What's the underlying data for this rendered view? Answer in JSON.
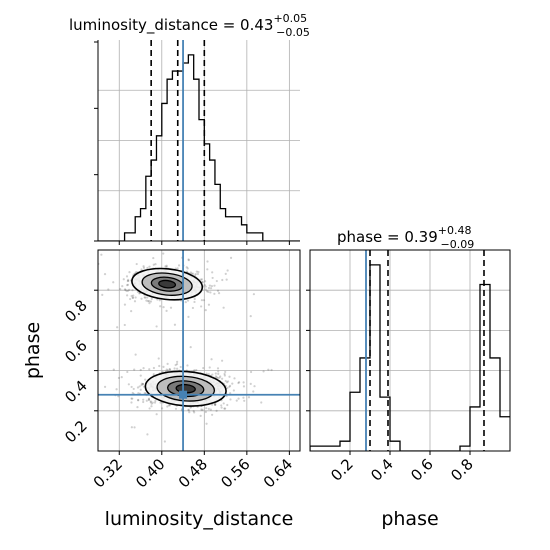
{
  "chart_data": [
    {
      "type": "histogram",
      "panel": "top-left",
      "parameter": "luminosity_distance",
      "title": {
        "main": "luminosity_distance = 0.43",
        "sup": "+0.05",
        "sub": "−0.05"
      },
      "xlim": [
        0.28,
        0.66
      ],
      "grid": true,
      "bin_edges": [
        0.28,
        0.29,
        0.3,
        0.31,
        0.32,
        0.33,
        0.34,
        0.35,
        0.36,
        0.37,
        0.38,
        0.39,
        0.4,
        0.41,
        0.42,
        0.43,
        0.44,
        0.45,
        0.46,
        0.47,
        0.48,
        0.49,
        0.5,
        0.51,
        0.52,
        0.53,
        0.54,
        0.55,
        0.56,
        0.57,
        0.58,
        0.59,
        0.6,
        0.61,
        0.62,
        0.63,
        0.64,
        0.65,
        0.66
      ],
      "counts": [
        0,
        0,
        0,
        0,
        0,
        1,
        1,
        3,
        4,
        8,
        10,
        13,
        17,
        20,
        21,
        21,
        22,
        23,
        20,
        15,
        12,
        10,
        7,
        4,
        3,
        3,
        3,
        2,
        1,
        1,
        1,
        0,
        0,
        0,
        0,
        0,
        0,
        0
      ],
      "quantiles": [
        0.38,
        0.43,
        0.48
      ],
      "truth": 0.44
    },
    {
      "type": "scatter_contour",
      "panel": "bottom-left",
      "xlabel": "luminosity_distance",
      "ylabel": "phase",
      "xlim": [
        0.28,
        0.66
      ],
      "ylim": [
        0.0,
        1.0
      ],
      "xticks": [
        "0.32",
        "0.40",
        "0.48",
        "0.56",
        "0.64"
      ],
      "yticks": [
        "0.2",
        "0.4",
        "0.6",
        "0.8"
      ],
      "grid": true,
      "modes": [
        {
          "x": 0.41,
          "y": 0.83,
          "sx": 0.035,
          "sy": 0.04,
          "weight": 0.42
        },
        {
          "x": 0.445,
          "y": 0.31,
          "sx": 0.04,
          "sy": 0.045,
          "weight": 0.58
        }
      ],
      "truth": {
        "x": 0.44,
        "y": 0.28
      }
    },
    {
      "type": "histogram",
      "panel": "bottom-right",
      "parameter": "phase",
      "title": {
        "main": "phase = 0.39",
        "sup": "+0.48",
        "sub": "−0.09"
      },
      "xlabel": "phase",
      "xlim": [
        0.0,
        1.0
      ],
      "xticks": [
        "0.2",
        "0.4",
        "0.6",
        "0.8"
      ],
      "grid": true,
      "bin_edges": [
        0.0,
        0.05,
        0.1,
        0.15,
        0.2,
        0.25,
        0.3,
        0.35,
        0.4,
        0.45,
        0.5,
        0.55,
        0.6,
        0.65,
        0.7,
        0.75,
        0.8,
        0.85,
        0.9,
        0.95,
        1.0
      ],
      "counts": [
        1,
        1,
        1,
        2,
        12,
        19,
        38,
        11,
        2,
        0,
        0,
        0,
        0,
        0,
        0,
        1,
        9,
        34,
        19,
        7
      ],
      "quantiles": [
        0.3,
        0.39,
        0.87
      ],
      "truth": 0.28
    }
  ]
}
